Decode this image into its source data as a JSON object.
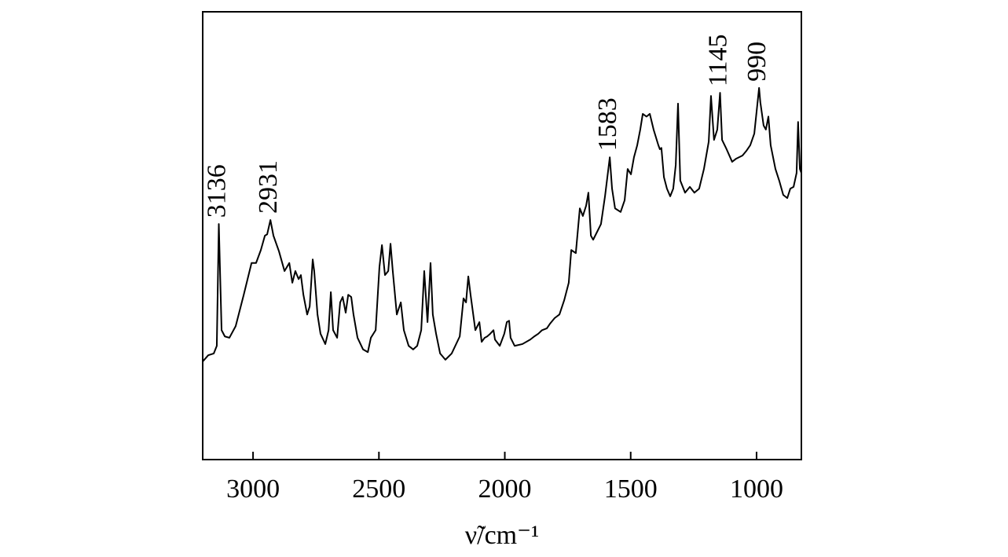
{
  "chart_data": {
    "type": "line",
    "xlabel": "ν̃/cm⁻¹",
    "xlim": [
      3200,
      822
    ],
    "xticks": [
      3000,
      2500,
      2000,
      1500,
      1000
    ],
    "ylim": [
      0,
      100
    ],
    "annotations": [
      3136,
      2931,
      1583,
      1145,
      990
    ],
    "series": [
      {
        "color": "#000000",
        "x": [
          3200,
          3178,
          3156,
          3144,
          3136,
          3125,
          3112,
          3094,
          3069,
          3037,
          3006,
          2988,
          2969,
          2953,
          2944,
          2931,
          2919,
          2897,
          2875,
          2856,
          2844,
          2832,
          2819,
          2810,
          2800,
          2785,
          2775,
          2763,
          2757,
          2744,
          2732,
          2713,
          2700,
          2691,
          2682,
          2666,
          2654,
          2644,
          2632,
          2622,
          2610,
          2601,
          2585,
          2563,
          2544,
          2532,
          2513,
          2498,
          2488,
          2476,
          2463,
          2454,
          2445,
          2429,
          2413,
          2401,
          2382,
          2364,
          2348,
          2332,
          2320,
          2307,
          2295,
          2286,
          2273,
          2257,
          2236,
          2211,
          2179,
          2164,
          2154,
          2145,
          2136,
          2117,
          2101,
          2092,
          2080,
          2070,
          2058,
          2045,
          2039,
          2020,
          2002,
          1992,
          1983,
          1977,
          1961,
          1930,
          1899,
          1883,
          1867,
          1852,
          1833,
          1821,
          1802,
          1783,
          1764,
          1746,
          1736,
          1718,
          1702,
          1690,
          1677,
          1668,
          1658,
          1649,
          1633,
          1618,
          1602,
          1583,
          1574,
          1562,
          1540,
          1524,
          1512,
          1499,
          1487,
          1474,
          1462,
          1452,
          1437,
          1424,
          1409,
          1390,
          1384,
          1378,
          1368,
          1356,
          1343,
          1331,
          1321,
          1312,
          1303,
          1284,
          1265,
          1247,
          1228,
          1209,
          1190,
          1181,
          1169,
          1156,
          1145,
          1137,
          1119,
          1097,
          1081,
          1056,
          1041,
          1025,
          1009,
          990,
          985,
          972,
          963,
          953,
          944,
          925,
          910,
          894,
          878,
          866,
          853,
          841,
          835,
          828,
          822
        ],
        "values": [
          21.9,
          23.3,
          23.7,
          25.4,
          52.6,
          28.9,
          27.5,
          27.2,
          29.8,
          36.8,
          43.9,
          43.9,
          46.8,
          50.0,
          50.3,
          53.5,
          50.0,
          46.5,
          42.1,
          43.9,
          39.5,
          42.1,
          40.3,
          41.2,
          36.8,
          32.4,
          34.2,
          44.7,
          42.1,
          32.4,
          28.1,
          25.8,
          28.9,
          37.4,
          28.9,
          27.2,
          35.1,
          36.3,
          32.8,
          36.8,
          36.3,
          32.4,
          27.2,
          24.6,
          24.0,
          27.2,
          28.9,
          43.0,
          47.9,
          41.2,
          42.1,
          48.2,
          42.1,
          32.4,
          35.1,
          28.9,
          25.4,
          24.6,
          25.4,
          28.9,
          42.1,
          30.7,
          43.9,
          32.4,
          28.1,
          23.7,
          22.3,
          23.7,
          27.5,
          36.0,
          35.1,
          40.9,
          36.8,
          28.9,
          30.7,
          26.3,
          27.2,
          27.5,
          28.1,
          28.9,
          26.8,
          25.4,
          28.1,
          30.7,
          31.0,
          27.2,
          25.4,
          25.8,
          26.8,
          27.5,
          28.1,
          28.9,
          29.3,
          30.3,
          31.6,
          32.4,
          35.6,
          39.5,
          46.8,
          46.1,
          56.1,
          54.4,
          56.7,
          59.6,
          50.0,
          49.1,
          50.9,
          52.6,
          58.8,
          67.5,
          60.5,
          56.1,
          55.3,
          57.9,
          64.9,
          63.7,
          67.5,
          70.2,
          73.7,
          77.2,
          76.6,
          77.2,
          73.7,
          70.2,
          69.3,
          69.6,
          63.1,
          60.5,
          58.8,
          60.5,
          65.8,
          79.5,
          62.3,
          59.6,
          60.9,
          59.6,
          60.5,
          64.9,
          71.0,
          81.2,
          71.4,
          73.7,
          81.9,
          71.4,
          69.3,
          66.5,
          67.2,
          67.9,
          68.9,
          70.2,
          72.8,
          83.0,
          79.8,
          74.6,
          73.7,
          76.6,
          70.2,
          64.9,
          62.3,
          59.1,
          58.4,
          60.5,
          60.9,
          64.0,
          75.4,
          64.9,
          64.0
        ]
      }
    ]
  }
}
